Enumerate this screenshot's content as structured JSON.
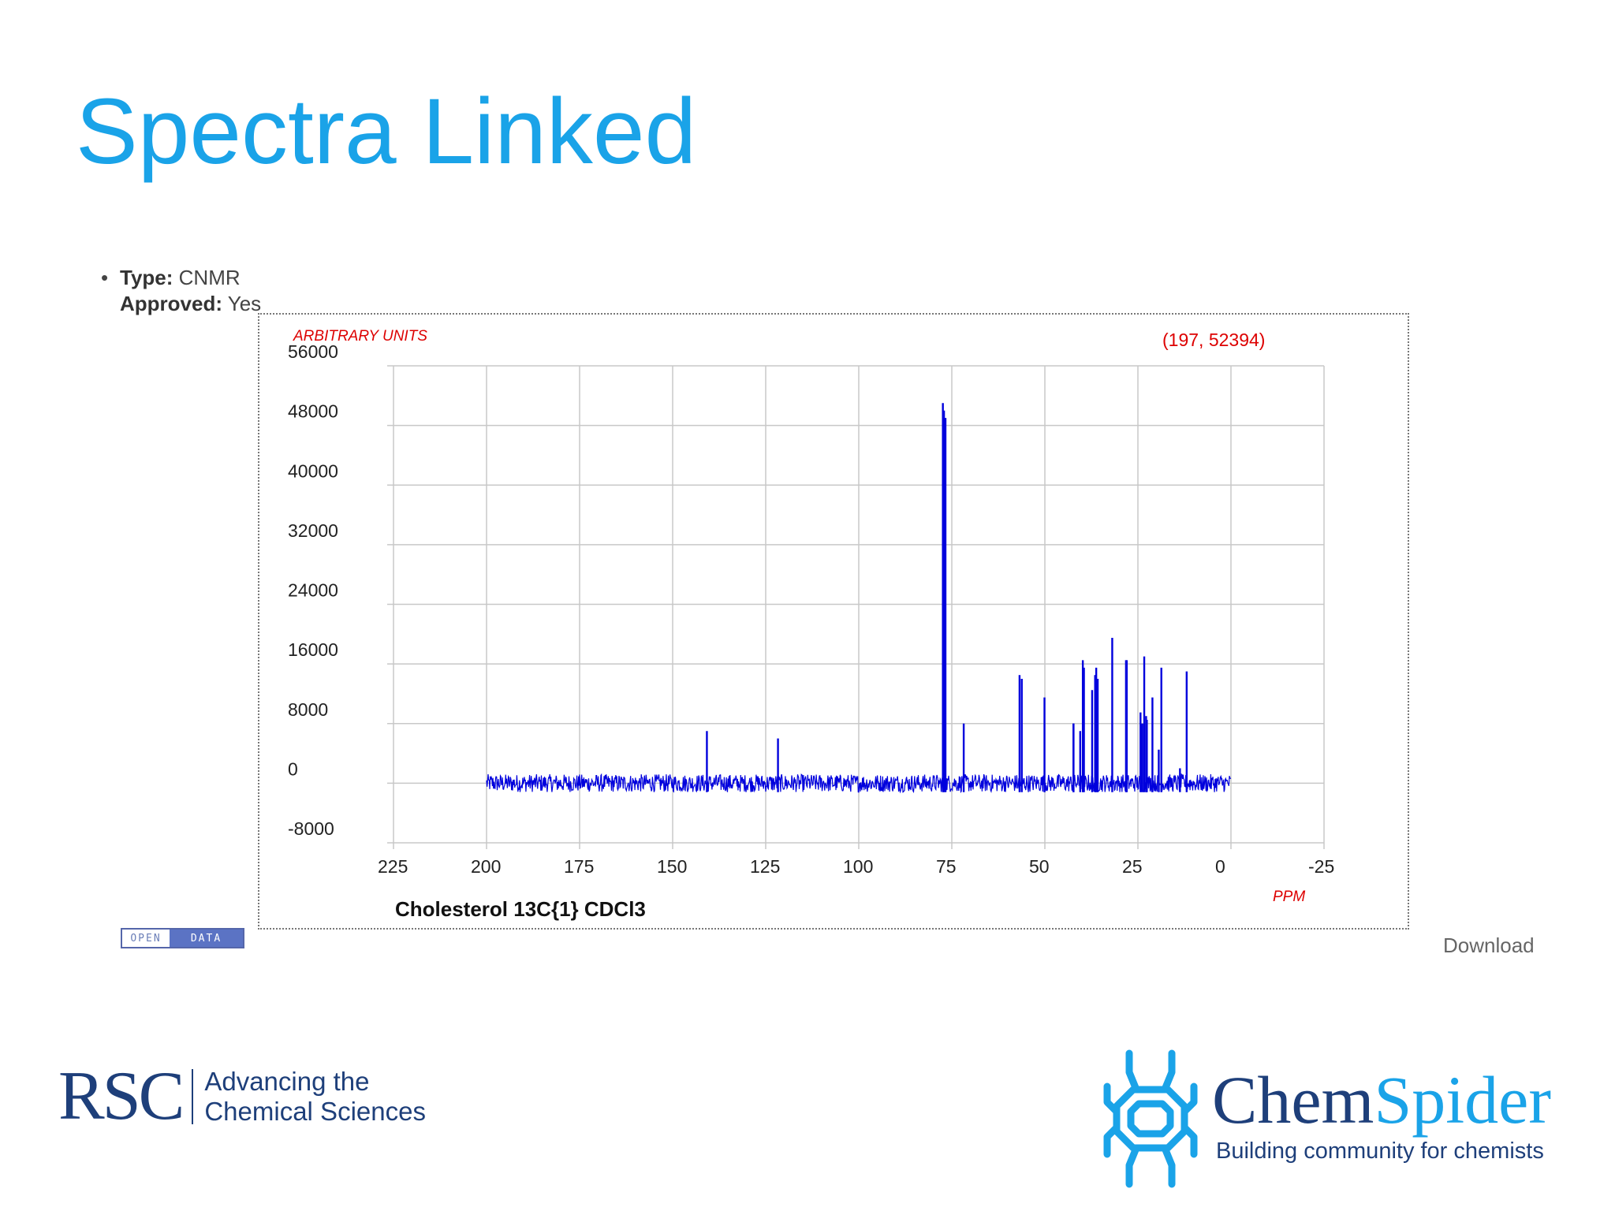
{
  "slide": {
    "title": "Spectra Linked"
  },
  "meta": {
    "type_label": "Type:",
    "type_value": "CNMR",
    "approved_label": "Approved:",
    "approved_value": "Yes"
  },
  "badge": {
    "open": "OPEN",
    "data": "DATA"
  },
  "download_label": "Download",
  "logos": {
    "rsc_mark": "RSC",
    "rsc_line1": "Advancing the",
    "rsc_line2": "Chemical Sciences",
    "chemspider_chem": "Chem",
    "chemspider_spider": "Spider",
    "chemspider_tagline": "Building community for chemists"
  },
  "colors": {
    "title": "#1aa3e8",
    "spectrum": "#0000dd",
    "label_red": "#dd0000",
    "brand_navy": "#1e3f7a"
  },
  "chart_data": {
    "type": "line",
    "title": "Cholesterol 13C{1} CDCl3",
    "ylabel": "ARBITRARY UNITS",
    "xlabel": "PPM",
    "cursor_readout": "(197, 52394)",
    "xlim": [
      225,
      -25
    ],
    "ylim": [
      -8000,
      56000
    ],
    "x_ticks": [
      "225",
      "200",
      "175",
      "150",
      "125",
      "100",
      "75",
      "50",
      "25",
      "0",
      "-25"
    ],
    "y_ticks": [
      "56000",
      "48000",
      "40000",
      "32000",
      "24000",
      "16000",
      "8000",
      "0",
      "-8000"
    ],
    "grid": true,
    "baseline_range": [
      200,
      0
    ],
    "noise_amplitude": 1200,
    "peaks": [
      {
        "x": 140.8,
        "y": 7000
      },
      {
        "x": 121.7,
        "y": 6000
      },
      {
        "x": 77.4,
        "y": 51000
      },
      {
        "x": 77.1,
        "y": 50000
      },
      {
        "x": 76.7,
        "y": 49000
      },
      {
        "x": 71.8,
        "y": 8000
      },
      {
        "x": 56.8,
        "y": 14500
      },
      {
        "x": 56.2,
        "y": 14000
      },
      {
        "x": 50.1,
        "y": 11500
      },
      {
        "x": 42.3,
        "y": 8000
      },
      {
        "x": 42.3,
        "y": 8000
      },
      {
        "x": 40.5,
        "y": 7000
      },
      {
        "x": 39.8,
        "y": 16500
      },
      {
        "x": 39.5,
        "y": 15500
      },
      {
        "x": 37.3,
        "y": 12500
      },
      {
        "x": 36.5,
        "y": 14500
      },
      {
        "x": 36.2,
        "y": 15500
      },
      {
        "x": 35.8,
        "y": 14000
      },
      {
        "x": 31.9,
        "y": 19500
      },
      {
        "x": 28.2,
        "y": 16500
      },
      {
        "x": 28.0,
        "y": 16500
      },
      {
        "x": 24.3,
        "y": 9500
      },
      {
        "x": 23.8,
        "y": 8000
      },
      {
        "x": 23.3,
        "y": 17000
      },
      {
        "x": 22.8,
        "y": 9000
      },
      {
        "x": 22.6,
        "y": 8500
      },
      {
        "x": 21.1,
        "y": 11500
      },
      {
        "x": 19.4,
        "y": 4500
      },
      {
        "x": 18.7,
        "y": 15500
      },
      {
        "x": 13.7,
        "y": 2000
      },
      {
        "x": 11.9,
        "y": 15000
      }
    ]
  }
}
